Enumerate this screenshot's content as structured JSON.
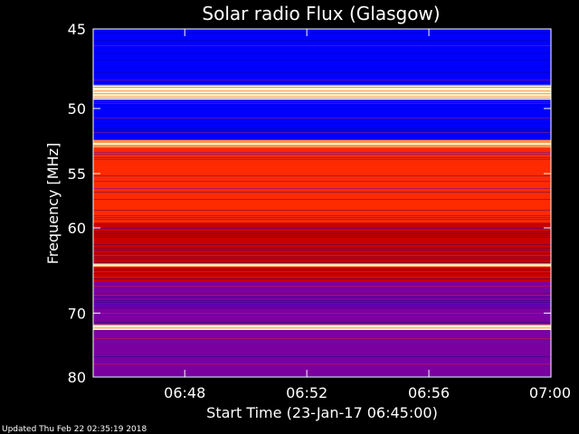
{
  "chart_data": {
    "type": "heatmap",
    "title": "Solar radio Flux (Glasgow)",
    "xlabel": "Start Time (23-Jan-17 06:45:00)",
    "ylabel": "Frequency [MHz]",
    "xlim": [
      "06:45:00",
      "07:00:00"
    ],
    "ylim": [
      45,
      80
    ],
    "y_scale": "reciprocal (frequency increases downward, non-linear spacing)",
    "x_ticks": [
      "06:48",
      "06:52",
      "06:56",
      "07:00"
    ],
    "y_ticks": [
      45,
      50,
      55,
      60,
      70,
      80
    ],
    "colormap": [
      "#00007a",
      "#0000ff",
      "#7a00a0",
      "#c80000",
      "#ff2a00",
      "#ff9050",
      "#fff8d0"
    ],
    "background_bands": [
      {
        "from": 45,
        "to": 48.4,
        "level": "low"
      },
      {
        "from": 48.4,
        "to": 49.4,
        "level": "very high"
      },
      {
        "from": 49.4,
        "to": 52.3,
        "level": "low"
      },
      {
        "from": 52.3,
        "to": 52.9,
        "level": "high"
      },
      {
        "from": 52.9,
        "to": 59.5,
        "level": "medium-high"
      },
      {
        "from": 59.5,
        "to": 66,
        "level": "medium"
      },
      {
        "from": 66,
        "to": 71.6,
        "level": "medium-low"
      },
      {
        "from": 71.6,
        "to": 72.4,
        "level": "very high"
      },
      {
        "from": 72.4,
        "to": 80,
        "level": "medium-low"
      }
    ],
    "bright_lines_mhz": [
      48.9,
      52.6,
      64.0,
      71.9
    ]
  },
  "footer": "Updated Thu Feb 22 02:35:19 2018",
  "colors": {
    "background": "#000000",
    "text": "#ffffff"
  }
}
